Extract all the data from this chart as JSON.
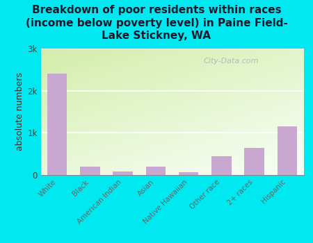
{
  "categories": [
    "White",
    "Black",
    "American Indian",
    "Asian",
    "Native Hawaiian",
    "Other race",
    "2+ races",
    "Hispanic"
  ],
  "values": [
    2400,
    200,
    80,
    200,
    70,
    450,
    650,
    1150
  ],
  "bar_color": "#c8a8d0",
  "title": "Breakdown of poor residents within races\n(income below poverty level) in Paine Field-\nLake Stickney, WA",
  "ylabel": "absolute numbers",
  "ylim": [
    0,
    3000
  ],
  "yticks": [
    0,
    1000,
    2000,
    3000
  ],
  "ytick_labels": [
    "0",
    "1k",
    "2k",
    "3k"
  ],
  "bg_color_topleft": "#d4edaa",
  "bg_color_bottomright": "#f8fff8",
  "outer_background": "#00e8f0",
  "watermark": "City-Data.com",
  "title_fontsize": 11,
  "ylabel_fontsize": 9
}
